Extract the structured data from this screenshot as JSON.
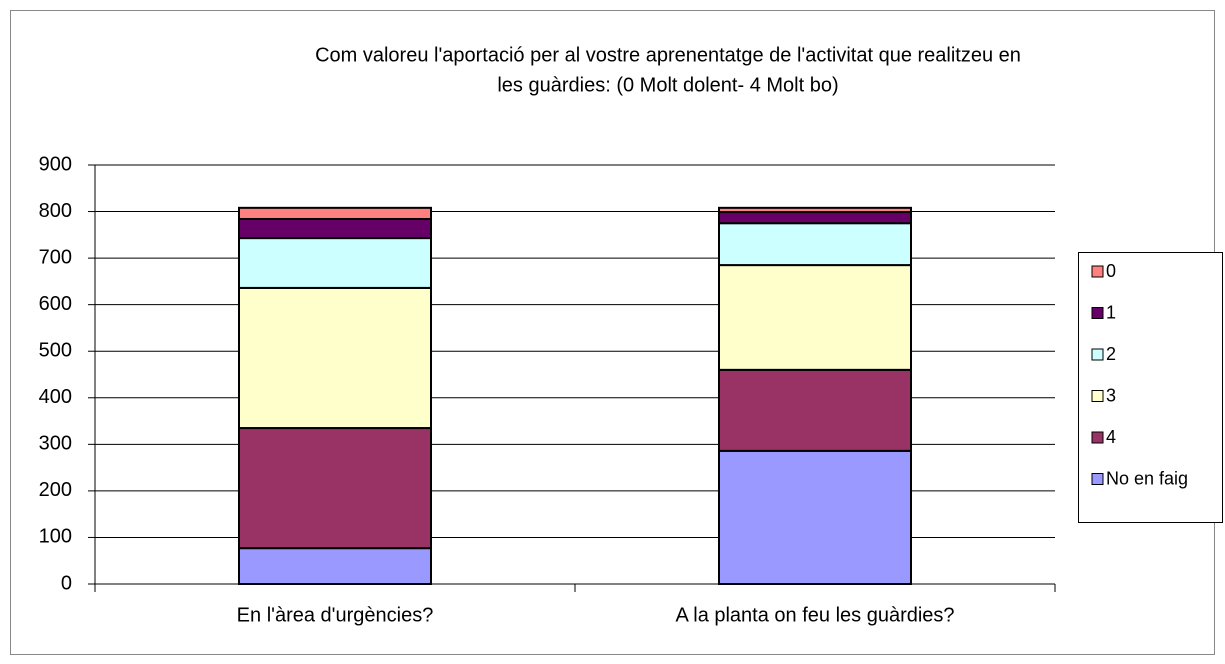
{
  "chart_data": {
    "type": "stacked_bar",
    "title": [
      "Com valoreu l'aportació per al vostre aprenentatge de l'activitat que realitzeu en",
      "les guàrdies: (0 Molt dolent- 4 Molt bo)"
    ],
    "categories": [
      "En l'àrea d'urgències?",
      "A la planta on feu les guàrdies?"
    ],
    "series": [
      {
        "name": "No en faig",
        "color": "#9999ff",
        "values": [
          77,
          286
        ]
      },
      {
        "name": "4",
        "color": "#993366",
        "values": [
          258,
          174
        ]
      },
      {
        "name": "3",
        "color": "#ffffcc",
        "values": [
          301,
          225
        ]
      },
      {
        "name": "2",
        "color": "#ccffff",
        "values": [
          107,
          90
        ]
      },
      {
        "name": "1",
        "color": "#660066",
        "values": [
          41,
          24
        ]
      },
      {
        "name": "0",
        "color": "#ff8080",
        "values": [
          24,
          9
        ]
      }
    ],
    "ylim": [
      0,
      900
    ],
    "yticks": [
      0,
      100,
      200,
      300,
      400,
      500,
      600,
      700,
      800,
      900
    ],
    "grid": true,
    "legend": "right"
  }
}
